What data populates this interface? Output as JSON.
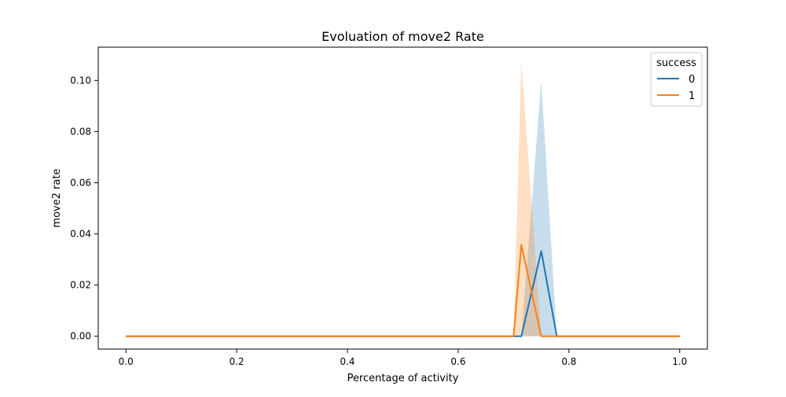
{
  "chart_data": {
    "type": "line",
    "title": "Evoluation of move2 Rate",
    "xlabel": "Percentage of activity",
    "ylabel": "move2 rate",
    "xlim": [
      -0.05,
      1.05
    ],
    "ylim": [
      -0.005,
      0.113
    ],
    "xticks": [
      "0.0",
      "0.2",
      "0.4",
      "0.6",
      "0.8",
      "1.0"
    ],
    "yticks": [
      "0.00",
      "0.02",
      "0.04",
      "0.06",
      "0.08",
      "0.10"
    ],
    "grid": false,
    "legend": {
      "title": "success",
      "position": "top-right"
    },
    "series": [
      {
        "name": "0",
        "color": "#1f77b4",
        "x": [
          0.0,
          0.7,
          0.714,
          0.75,
          0.778,
          0.8,
          1.0
        ],
        "values": [
          0.0,
          0.0,
          0.0,
          0.0333,
          0.0,
          0.0,
          0.0
        ],
        "ci_upper": [
          0.0,
          0.0,
          0.0,
          0.1,
          0.0,
          0.0,
          0.0
        ],
        "ci_lower": [
          0.0,
          0.0,
          0.0,
          0.0,
          0.0,
          0.0,
          0.0
        ]
      },
      {
        "name": "1",
        "color": "#ff7f0e",
        "x": [
          0.0,
          0.7,
          0.714,
          0.75,
          0.8,
          1.0
        ],
        "values": [
          0.0,
          0.0,
          0.0357,
          0.0,
          0.0,
          0.0
        ],
        "ci_upper": [
          0.0,
          0.0,
          0.107,
          0.0,
          0.0,
          0.0
        ],
        "ci_lower": [
          0.0,
          0.0,
          0.0,
          0.0,
          0.0,
          0.0
        ]
      }
    ]
  }
}
